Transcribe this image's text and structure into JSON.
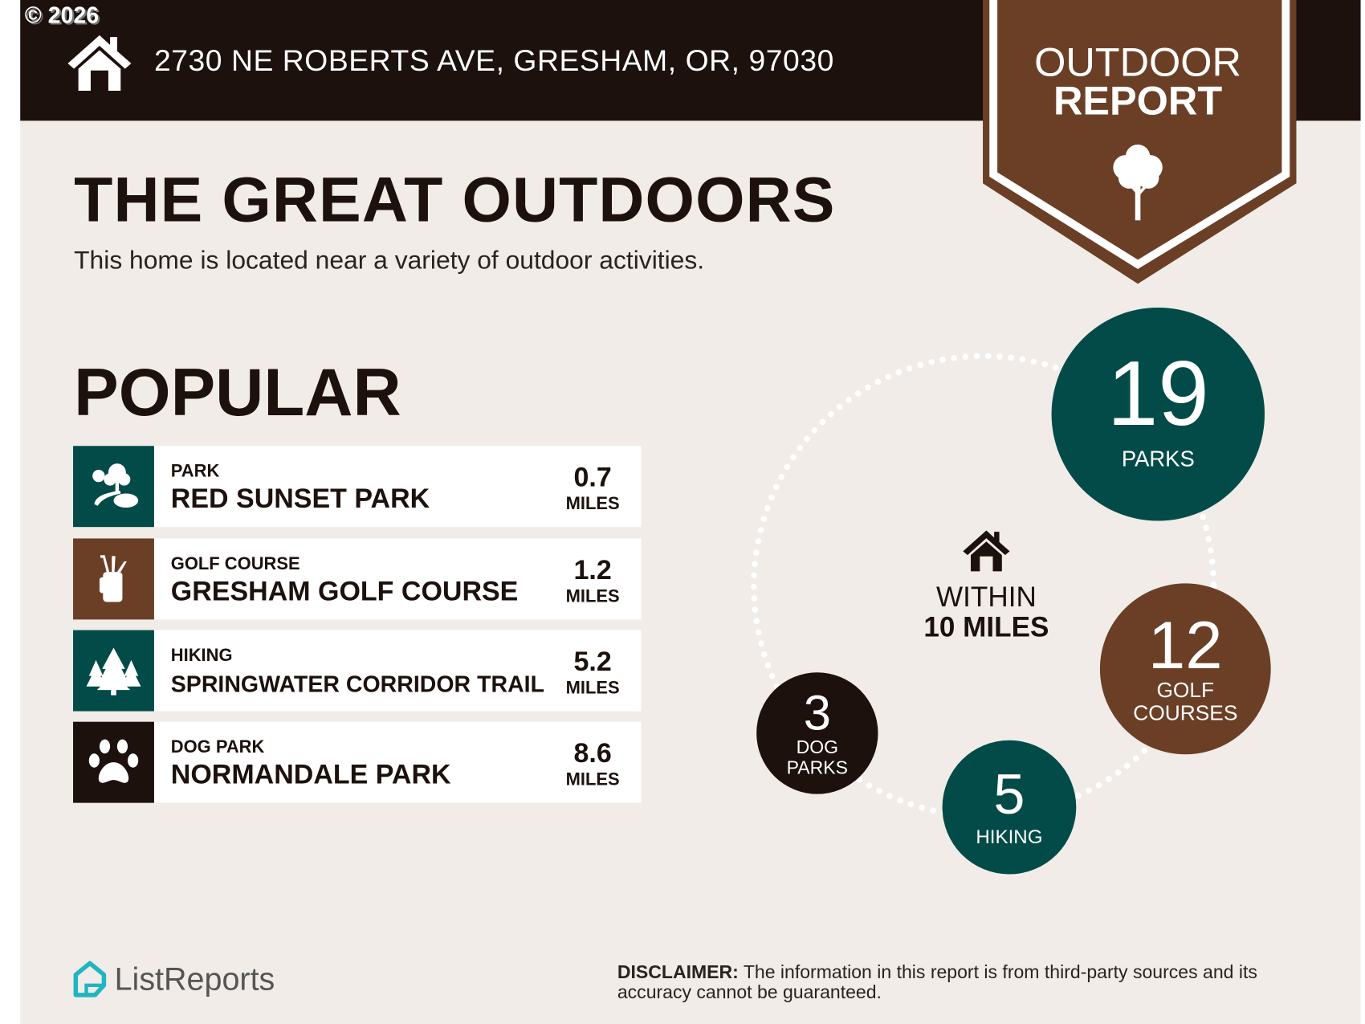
{
  "copyright": "© 2026",
  "header": {
    "address": "2730 NE ROBERTS AVE, GRESHAM, OR, 97030",
    "home_icon": "house-icon"
  },
  "badge": {
    "line1": "OUTDOOR",
    "line2": "REPORT",
    "icon": "tree-icon"
  },
  "title": "THE GREAT OUTDOORS",
  "subtitle": "This home is located near a variety of outdoor activities.",
  "popular": {
    "heading": "POPULAR",
    "items": [
      {
        "category": "PARK",
        "name": "RED SUNSET PARK",
        "distance": "0.7",
        "unit": "MILES",
        "icon": "park-icon",
        "color": "#024b48"
      },
      {
        "category": "GOLF COURSE",
        "name": "GRESHAM GOLF COURSE",
        "distance": "1.2",
        "unit": "MILES",
        "icon": "golf-bag-icon",
        "color": "#6b3f26"
      },
      {
        "category": "HIKING",
        "name": "SPRINGWATER CORRIDOR TRAIL",
        "distance": "5.2",
        "unit": "MILES",
        "icon": "pine-trees-icon",
        "color": "#024b48"
      },
      {
        "category": "DOG PARK",
        "name": "NORMANDALE PARK",
        "distance": "8.6",
        "unit": "MILES",
        "icon": "paw-icon",
        "color": "#1c110d"
      }
    ]
  },
  "summary": {
    "center_line1": "WITHIN",
    "center_line2": "10 MILES",
    "counts": [
      {
        "count": "19",
        "label": "PARKS",
        "color": "#024b48"
      },
      {
        "count": "12",
        "label_line1": "GOLF",
        "label_line2": "COURSES",
        "color": "#6b3f26"
      },
      {
        "count": "5",
        "label": "HIKING",
        "color": "#024b48"
      },
      {
        "count": "3",
        "label_line1": "DOG",
        "label_line2": "PARKS",
        "color": "#1c110d"
      }
    ]
  },
  "footer": {
    "logo_text": "ListReports",
    "disclaimer_label": "DISCLAIMER:",
    "disclaimer_text": " The information in this report is from third-party sources and its accuracy cannot be guaranteed."
  }
}
